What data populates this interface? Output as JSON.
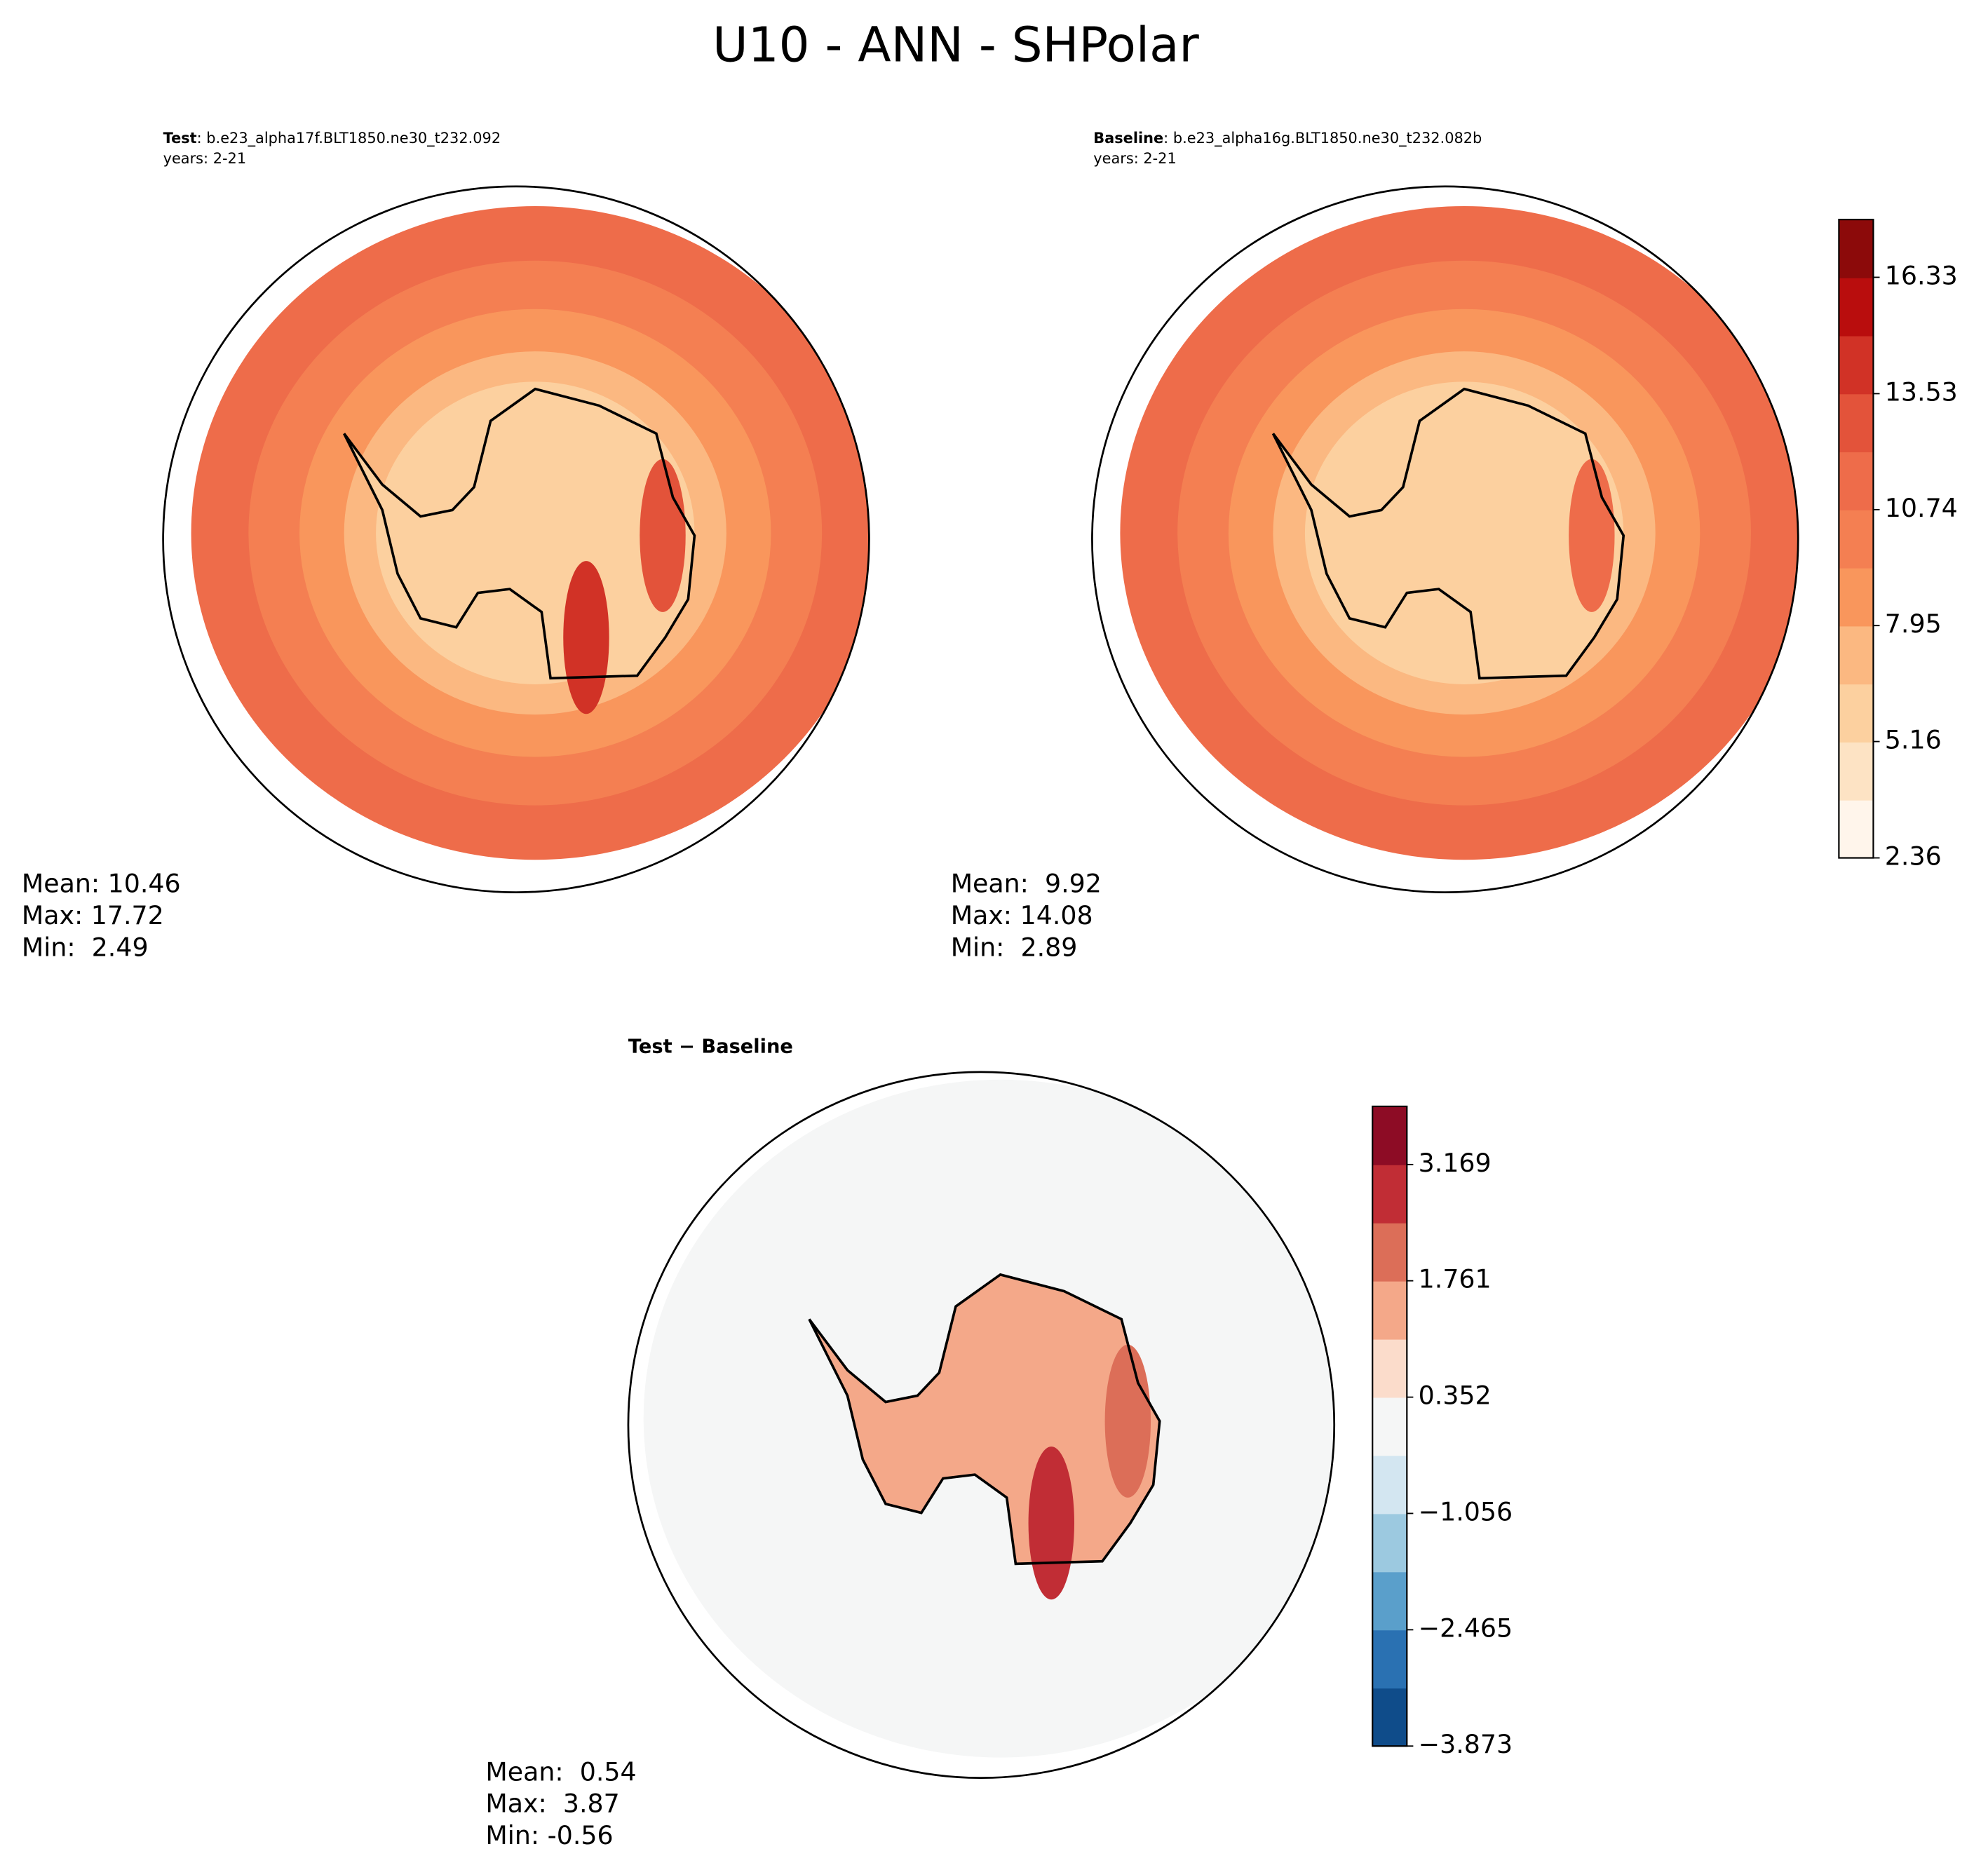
{
  "title": "U10 - ANN - SHPolar",
  "panels": [
    {
      "label": "Test",
      "case": ": b.e23_alpha17f.BLT1850.ne30_t232.092",
      "years": "years: 2-21",
      "stats": [
        "Mean: 10.46",
        "Max: 17.72",
        "Min:  2.49"
      ]
    },
    {
      "label": "Baseline",
      "case": ": b.e23_alpha16g.BLT1850.ne30_t232.082b",
      "years": "years: 2-21",
      "stats": [
        "Mean:  9.92",
        "Max: 14.08",
        "Min:  2.89"
      ]
    },
    {
      "label": "Test − Baseline",
      "stats": [
        "Mean:  0.54",
        "Max:  3.87",
        "Min: -0.56"
      ]
    }
  ],
  "colorbars": [
    {
      "lim": [
        2.36,
        17.72
      ],
      "ticks": [
        2.36,
        5.16,
        7.95,
        10.74,
        13.53,
        16.33
      ],
      "colors": [
        "#fff5eb",
        "#fde3c4",
        "#fcd09f",
        "#fbb881",
        "#f9965c",
        "#f47f52",
        "#ee6c4a",
        "#e3533a",
        "#d13226",
        "#b90d0d",
        "#8c0a0a"
      ]
    },
    {
      "lim": [
        -3.873,
        3.873
      ],
      "ticks": [
        {
          "value": -3.873,
          "label": "−3.873"
        },
        {
          "value": -2.465,
          "label": "−2.465"
        },
        {
          "value": -1.056,
          "label": "−1.056"
        },
        0.352,
        1.761,
        3.169
      ],
      "colors": [
        "#0f4c8a",
        "#2a71b2",
        "#5a9fcb",
        "#9cc9e0",
        "#d3e6f1",
        "#f5f6f6",
        "#fbdccb",
        "#f4a889",
        "#dc6e58",
        "#c12d35",
        "#8d0c25"
      ]
    }
  ]
}
